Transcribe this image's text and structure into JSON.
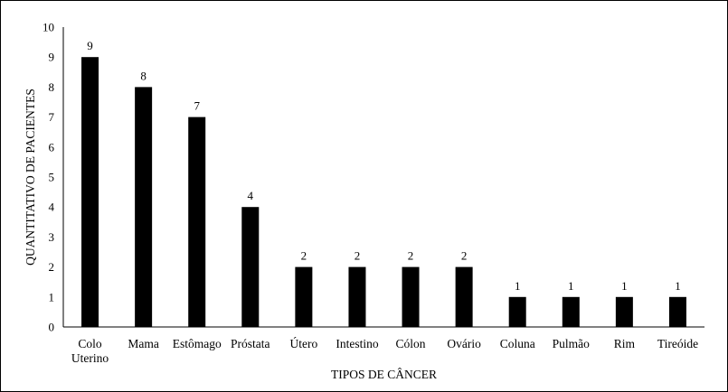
{
  "chart_data": {
    "type": "bar",
    "xlabel": "TIPOS DE CÂNCER",
    "ylabel": "QUANTITATIVO DE PACIENTES",
    "ylim": [
      0,
      10
    ],
    "yticks": [
      0,
      1,
      2,
      3,
      4,
      5,
      6,
      7,
      8,
      9,
      10
    ],
    "grid": false,
    "legend": "none",
    "bar_color": "#000000",
    "categories": [
      [
        "Colo",
        "Uterino"
      ],
      [
        "Mama"
      ],
      [
        "Estômago"
      ],
      [
        "Próstata"
      ],
      [
        "Útero"
      ],
      [
        "Intestino"
      ],
      [
        "Cólon"
      ],
      [
        "Ovário"
      ],
      [
        "Coluna"
      ],
      [
        "Pulmão"
      ],
      [
        "Rim"
      ],
      [
        "Tireóide"
      ]
    ],
    "values": [
      9,
      8,
      7,
      4,
      2,
      2,
      2,
      2,
      1,
      1,
      1,
      1
    ]
  }
}
